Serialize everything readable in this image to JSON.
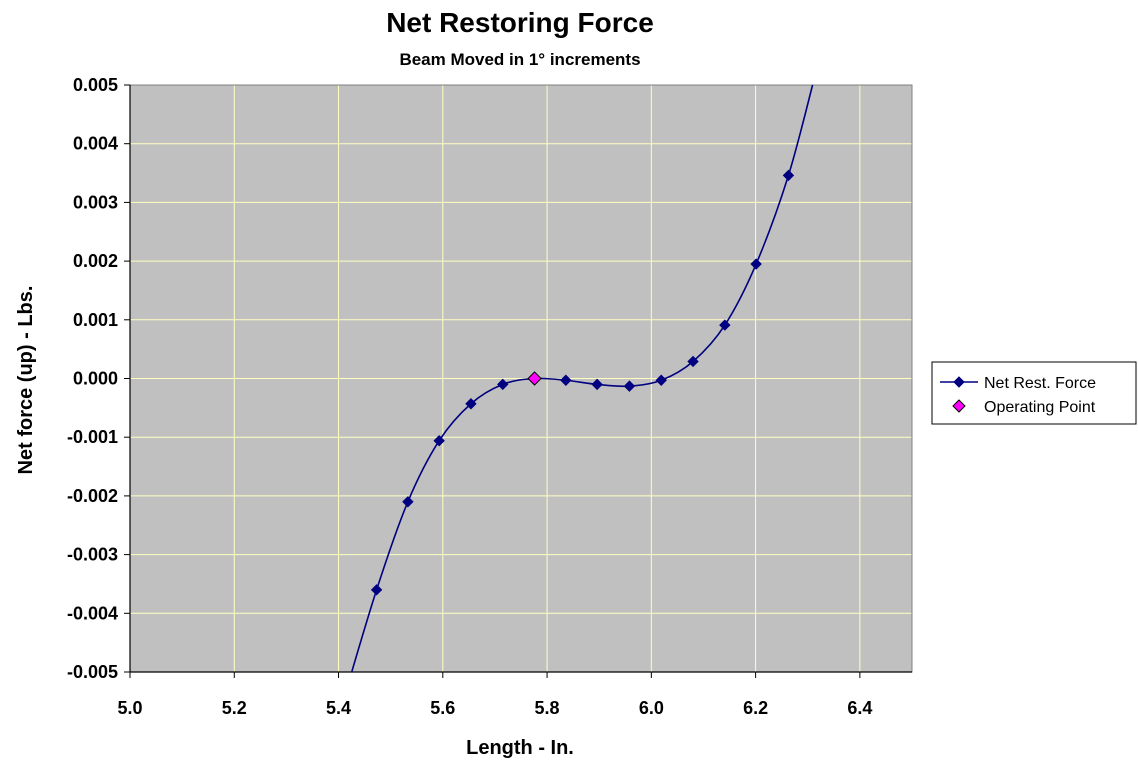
{
  "chart_data": {
    "type": "scatter",
    "title": "Net Restoring Force",
    "subtitle": "Beam Moved in 1° increments",
    "xlabel": "Length - In.",
    "ylabel": "Net force (up) - Lbs.",
    "xlim": [
      5.0,
      6.5
    ],
    "ylim": [
      -0.005,
      0.005
    ],
    "x_ticks": [
      5.0,
      5.2,
      5.4,
      5.6,
      5.8,
      6.0,
      6.2,
      6.4
    ],
    "x_tick_labels": [
      "5.0",
      "5.2",
      "5.4",
      "5.6",
      "5.8",
      "6.0",
      "6.2",
      "6.4"
    ],
    "y_ticks": [
      0.005,
      0.004,
      0.003,
      0.002,
      0.001,
      0.0,
      -0.001,
      -0.002,
      -0.003,
      -0.004,
      -0.005
    ],
    "y_tick_labels": [
      "0.005",
      "0.004",
      "0.003",
      "0.002",
      "0.001",
      "0.000",
      "-0.001",
      "-0.002",
      "-0.003",
      "-0.004",
      "-0.005"
    ],
    "grid": true,
    "plot_background": "#c0c0c0",
    "grid_color": "#ffffc0",
    "legend_position": "right",
    "series": [
      {
        "name": "Net Rest. Force",
        "color": "#000080",
        "marker": "diamond",
        "smooth": true,
        "x": [
          5.412,
          5.473,
          5.533,
          5.593,
          5.654,
          5.715,
          5.776,
          5.836,
          5.896,
          5.958,
          6.019,
          6.08,
          6.141,
          6.201,
          6.263,
          6.315
        ],
        "y": [
          -0.0054,
          -0.0036,
          -0.0021,
          -0.00106,
          -0.00043,
          -0.0001,
          0.0,
          -3e-05,
          -0.0001,
          -0.00013,
          -3e-05,
          0.00029,
          0.00091,
          0.00195,
          0.00346,
          0.0052
        ],
        "marker_indices": [
          1,
          2,
          3,
          4,
          5,
          6,
          7,
          8,
          9,
          10,
          11,
          12,
          13,
          14
        ]
      },
      {
        "name": "Operating Point",
        "color": "#ff00ff",
        "marker": "diamond",
        "x": [
          5.776
        ],
        "y": [
          0.0
        ]
      }
    ]
  }
}
